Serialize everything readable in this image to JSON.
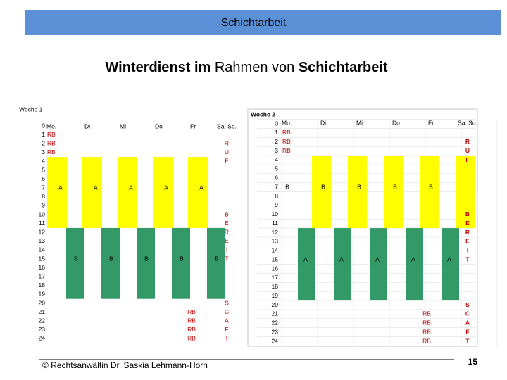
{
  "header": {
    "title": "Schichtarbeit"
  },
  "slide_title": {
    "parts": [
      "Winterdienst im",
      "Rahmen von",
      "Schichtarbeit"
    ]
  },
  "weeks": [
    {
      "label": "Woche 1",
      "days": [
        "Mo.",
        "Di",
        "Mi",
        "Do",
        "Fr",
        "Sa, So."
      ],
      "hours": [
        0,
        1,
        2,
        3,
        4,
        5,
        6,
        7,
        8,
        9,
        10,
        11,
        12,
        13,
        14,
        15,
        16,
        17,
        18,
        19,
        20,
        21,
        22,
        23,
        24
      ],
      "yellow_shift": "A",
      "green_shift": "B",
      "standby": "RB",
      "weekend": [
        [
          "R",
          "U",
          "F"
        ],
        [
          "B",
          "E",
          "R",
          "E",
          "I",
          "T"
        ],
        [
          "S",
          "C",
          "A",
          "F",
          "T"
        ]
      ]
    },
    {
      "label": "Woche 2",
      "days": [
        "Mo.",
        "Di",
        "Mi",
        "Do",
        "Fr",
        "Sa. So."
      ],
      "hours": [
        0,
        1,
        2,
        3,
        4,
        5,
        6,
        7,
        8,
        9,
        10,
        11,
        12,
        13,
        14,
        15,
        16,
        17,
        18,
        19,
        20,
        21,
        22,
        23,
        24
      ],
      "yellow_shift": "B",
      "green_shift": "A",
      "standby": "RB",
      "weekend": [
        [
          "R",
          "U",
          "F"
        ],
        [
          "B",
          "E",
          "R",
          "E",
          "I",
          "T"
        ],
        [
          "S",
          "C",
          "A",
          "F",
          "T"
        ]
      ]
    }
  ],
  "footer": {
    "author": "© Rechtsanwältin Dr. Saskia Lehmann-Horn",
    "page": "15"
  }
}
